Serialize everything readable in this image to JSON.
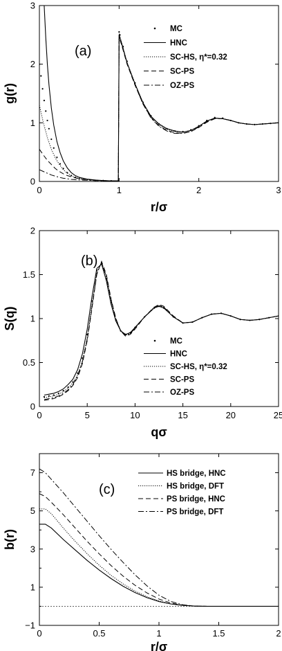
{
  "chart_data": [
    {
      "type": "line",
      "panel_label": "(a)",
      "xlabel": "r/σ",
      "ylabel": "g(r)",
      "xlim": [
        0,
        3
      ],
      "ylim": [
        0,
        3
      ],
      "xticks": [
        "0",
        "1",
        "2",
        "3"
      ],
      "yticks": [
        "0",
        "1",
        "2",
        "3"
      ],
      "legend_position": "top-right",
      "series": [
        {
          "name": "MC",
          "style": "points",
          "x": [
            0,
            0.02,
            0.04,
            0.06,
            0.08,
            0.1,
            0.12,
            0.15,
            0.18,
            0.22,
            0.26,
            0.3,
            0.35,
            0.4,
            0.45,
            0.5,
            0.6,
            0.7,
            0.8,
            0.9,
            0.99,
            1.0,
            1.01,
            1.05,
            1.1,
            1.2,
            1.3,
            1.4,
            1.5,
            1.6,
            1.7,
            1.8,
            1.9,
            2.0,
            2.1,
            2.2,
            2.3,
            2.4,
            2.5,
            2.6,
            2.7,
            2.8,
            2.9,
            3.0
          ],
          "y": [
            2.0,
            1.8,
            1.58,
            1.38,
            1.2,
            1.04,
            0.9,
            0.72,
            0.57,
            0.41,
            0.3,
            0.22,
            0.15,
            0.1,
            0.07,
            0.05,
            0.03,
            0.02,
            0.015,
            0.01,
            0.01,
            2.55,
            2.5,
            2.3,
            2.05,
            1.68,
            1.35,
            1.12,
            0.98,
            0.9,
            0.86,
            0.85,
            0.88,
            0.95,
            1.04,
            1.09,
            1.08,
            1.04,
            1.0,
            0.98,
            0.97,
            0.98,
            0.99,
            1.0
          ]
        },
        {
          "name": "HNC",
          "style": "solid",
          "x": [
            0.06,
            0.08,
            0.1,
            0.12,
            0.15,
            0.18,
            0.22,
            0.26,
            0.3,
            0.35,
            0.4,
            0.45,
            0.5,
            0.6,
            0.7,
            0.8,
            0.9,
            0.99,
            1.0,
            1.01,
            1.05,
            1.1,
            1.2,
            1.3,
            1.4,
            1.5,
            1.6,
            1.7,
            1.8,
            1.9,
            2.0,
            2.1,
            2.2,
            2.3,
            2.4,
            2.5,
            2.6,
            2.7,
            2.8,
            2.9,
            3.0
          ],
          "y": [
            3.0,
            2.45,
            2.0,
            1.65,
            1.25,
            0.96,
            0.68,
            0.49,
            0.35,
            0.23,
            0.15,
            0.1,
            0.07,
            0.04,
            0.025,
            0.015,
            0.01,
            0.01,
            2.5,
            2.45,
            2.26,
            2.02,
            1.66,
            1.34,
            1.11,
            0.98,
            0.9,
            0.86,
            0.84,
            0.87,
            0.94,
            1.03,
            1.08,
            1.07,
            1.04,
            1.0,
            0.98,
            0.97,
            0.98,
            0.99,
            1.0
          ]
        },
        {
          "name": "SC-HS, η*=0.32",
          "style": "dotted",
          "x": [
            0,
            0.05,
            0.1,
            0.15,
            0.2,
            0.25,
            0.3,
            0.35,
            0.4,
            0.45,
            0.5,
            0.6,
            0.7,
            0.8,
            0.9,
            0.99,
            1.0,
            1.01,
            1.05,
            1.1,
            1.2,
            1.3,
            1.4,
            1.5,
            1.6,
            1.7,
            1.8,
            1.9,
            2.0,
            2.1,
            2.2,
            2.3,
            2.4,
            2.5,
            2.6,
            2.7,
            2.8,
            2.9,
            3.0
          ],
          "y": [
            1.3,
            1.0,
            0.75,
            0.55,
            0.4,
            0.29,
            0.2,
            0.14,
            0.1,
            0.07,
            0.05,
            0.03,
            0.02,
            0.015,
            0.01,
            0.01,
            2.52,
            2.47,
            2.28,
            2.03,
            1.67,
            1.34,
            1.11,
            0.97,
            0.89,
            0.85,
            0.84,
            0.87,
            0.94,
            1.03,
            1.08,
            1.07,
            1.04,
            1.0,
            0.98,
            0.97,
            0.98,
            0.99,
            1.0
          ]
        },
        {
          "name": "SC-PS",
          "style": "dashed",
          "x": [
            0,
            0.05,
            0.1,
            0.15,
            0.2,
            0.25,
            0.3,
            0.35,
            0.4,
            0.45,
            0.5,
            0.6,
            0.7,
            0.8,
            0.9,
            0.99,
            1.0,
            1.01,
            1.05,
            1.1,
            1.2,
            1.3,
            1.4,
            1.5,
            1.6,
            1.7,
            1.8,
            1.9,
            2.0,
            2.1,
            2.2,
            2.3,
            2.4,
            2.5,
            2.6,
            2.7,
            2.8,
            2.9,
            3.0
          ],
          "y": [
            0.55,
            0.45,
            0.36,
            0.29,
            0.22,
            0.17,
            0.13,
            0.1,
            0.08,
            0.06,
            0.045,
            0.03,
            0.02,
            0.015,
            0.01,
            0.01,
            2.45,
            2.42,
            2.24,
            2.0,
            1.64,
            1.32,
            1.09,
            0.95,
            0.87,
            0.83,
            0.82,
            0.85,
            0.92,
            1.01,
            1.07,
            1.07,
            1.04,
            1.0,
            0.98,
            0.97,
            0.98,
            0.99,
            1.0
          ]
        },
        {
          "name": "OZ-PS",
          "style": "dashdot",
          "x": [
            0,
            0.05,
            0.1,
            0.15,
            0.2,
            0.25,
            0.3,
            0.35,
            0.4,
            0.45,
            0.5,
            0.6,
            0.7,
            0.8,
            0.9,
            0.99,
            1.0,
            1.01,
            1.05,
            1.1,
            1.2,
            1.3,
            1.4,
            1.5,
            1.6,
            1.7,
            1.8,
            1.9,
            2.0,
            2.1,
            2.2,
            2.3,
            2.4,
            2.5,
            2.6,
            2.7,
            2.8,
            2.9,
            3.0
          ],
          "y": [
            0.2,
            0.17,
            0.14,
            0.11,
            0.09,
            0.07,
            0.055,
            0.045,
            0.035,
            0.03,
            0.025,
            0.02,
            0.015,
            0.01,
            0.01,
            0.01,
            2.5,
            2.46,
            2.27,
            2.02,
            1.65,
            1.32,
            1.08,
            0.94,
            0.86,
            0.82,
            0.82,
            0.85,
            0.93,
            1.02,
            1.08,
            1.07,
            1.04,
            1.0,
            0.98,
            0.97,
            0.98,
            0.99,
            1.0
          ]
        }
      ]
    },
    {
      "type": "line",
      "panel_label": "(b)",
      "xlabel": "qσ",
      "ylabel": "S(q)",
      "xlim": [
        0,
        25
      ],
      "ylim": [
        0,
        2
      ],
      "xticks": [
        "0",
        "5",
        "10",
        "15",
        "20",
        "25"
      ],
      "yticks": [
        "0",
        "0.5",
        "1",
        "1.5",
        "2"
      ],
      "legend_position": "bottom-right",
      "series": [
        {
          "name": "MC",
          "style": "points",
          "x": [
            0.5,
            1,
            1.5,
            2,
            2.5,
            3,
            3.5,
            4,
            4.5,
            5,
            5.5,
            6,
            6.5,
            7,
            7.5,
            8,
            8.5,
            9,
            9.5,
            10,
            11,
            12,
            12.5,
            13,
            14,
            15,
            16,
            17,
            18,
            19,
            20,
            21,
            22,
            23,
            24,
            25
          ],
          "y": [
            0.11,
            0.12,
            0.13,
            0.15,
            0.18,
            0.22,
            0.28,
            0.38,
            0.55,
            0.82,
            1.2,
            1.55,
            1.63,
            1.45,
            1.18,
            0.98,
            0.86,
            0.82,
            0.84,
            0.9,
            1.02,
            1.12,
            1.14,
            1.12,
            1.02,
            0.95,
            0.96,
            1.01,
            1.05,
            1.06,
            1.03,
            0.99,
            0.98,
            0.99,
            1.01,
            1.03
          ]
        },
        {
          "name": "HNC",
          "style": "solid",
          "x": [
            0.5,
            1,
            1.5,
            2,
            2.5,
            3,
            3.5,
            4,
            4.5,
            5,
            5.5,
            6,
            6.5,
            7,
            7.5,
            8,
            8.5,
            9,
            9.5,
            10,
            11,
            12,
            12.5,
            13,
            14,
            15,
            16,
            17,
            18,
            19,
            20,
            21,
            22,
            23,
            24,
            25
          ],
          "y": [
            0.13,
            0.14,
            0.15,
            0.17,
            0.2,
            0.25,
            0.31,
            0.42,
            0.6,
            0.88,
            1.25,
            1.57,
            1.62,
            1.43,
            1.16,
            0.97,
            0.86,
            0.82,
            0.84,
            0.9,
            1.02,
            1.12,
            1.14,
            1.12,
            1.02,
            0.95,
            0.96,
            1.01,
            1.05,
            1.06,
            1.03,
            0.99,
            0.98,
            0.99,
            1.01,
            1.03
          ]
        },
        {
          "name": "SC-HS, η*=0.32",
          "style": "dotted",
          "x": [
            0.5,
            1,
            1.5,
            2,
            2.5,
            3,
            3.5,
            4,
            4.5,
            5,
            5.5,
            6,
            6.5,
            7,
            7.5,
            8,
            8.5,
            9,
            9.5,
            10,
            11,
            12,
            12.5,
            13,
            14,
            15,
            16,
            17,
            18,
            19,
            20,
            21,
            22,
            23,
            24,
            25
          ],
          "y": [
            0.1,
            0.11,
            0.12,
            0.14,
            0.17,
            0.21,
            0.27,
            0.36,
            0.52,
            0.78,
            1.15,
            1.52,
            1.64,
            1.47,
            1.2,
            0.99,
            0.86,
            0.81,
            0.83,
            0.89,
            1.02,
            1.13,
            1.15,
            1.13,
            1.02,
            0.95,
            0.96,
            1.01,
            1.05,
            1.06,
            1.03,
            0.99,
            0.98,
            0.99,
            1.01,
            1.03
          ]
        },
        {
          "name": "SC-PS",
          "style": "dashed",
          "x": [
            0.5,
            1,
            1.5,
            2,
            2.5,
            3,
            3.5,
            4,
            4.5,
            5,
            5.5,
            6,
            6.5,
            7,
            7.5,
            8,
            8.5,
            9,
            9.5,
            10,
            11,
            12,
            12.5,
            13,
            14,
            15,
            16,
            17,
            18,
            19,
            20,
            21,
            22,
            23,
            24,
            25
          ],
          "y": [
            0.07,
            0.08,
            0.09,
            0.11,
            0.14,
            0.18,
            0.24,
            0.33,
            0.49,
            0.75,
            1.12,
            1.5,
            1.65,
            1.5,
            1.22,
            1.0,
            0.86,
            0.8,
            0.82,
            0.88,
            1.02,
            1.13,
            1.16,
            1.14,
            1.03,
            0.95,
            0.96,
            1.01,
            1.05,
            1.06,
            1.03,
            0.99,
            0.98,
            0.99,
            1.01,
            1.03
          ]
        },
        {
          "name": "OZ-PS",
          "style": "dashdot",
          "x": [
            0.5,
            1,
            1.5,
            2,
            2.5,
            3,
            3.5,
            4,
            4.5,
            5,
            5.5,
            6,
            6.5,
            7,
            7.5,
            8,
            8.5,
            9,
            9.5,
            10,
            11,
            12,
            12.5,
            13,
            14,
            15,
            16,
            17,
            18,
            19,
            20,
            21,
            22,
            23,
            24,
            25
          ],
          "y": [
            0.08,
            0.09,
            0.1,
            0.12,
            0.15,
            0.19,
            0.25,
            0.35,
            0.51,
            0.77,
            1.14,
            1.51,
            1.64,
            1.48,
            1.21,
            0.99,
            0.86,
            0.81,
            0.83,
            0.89,
            1.02,
            1.12,
            1.15,
            1.13,
            1.02,
            0.95,
            0.96,
            1.01,
            1.05,
            1.06,
            1.03,
            0.99,
            0.98,
            0.99,
            1.01,
            1.03
          ]
        }
      ]
    },
    {
      "type": "line",
      "panel_label": "(c)",
      "xlabel": "r/σ",
      "ylabel": "b(r)",
      "xlim": [
        0,
        2
      ],
      "ylim": [
        -1,
        8
      ],
      "xticks": [
        "0",
        "0.5",
        "1",
        "1.5",
        "2"
      ],
      "yticks": [
        "−1",
        "1",
        "3",
        "5",
        "7"
      ],
      "legend_position": "top-right",
      "series": [
        {
          "name": "HS bridge, HNC",
          "style": "solid",
          "x": [
            0,
            0.05,
            0.1,
            0.2,
            0.3,
            0.4,
            0.5,
            0.6,
            0.7,
            0.8,
            0.9,
            1.0,
            1.1,
            1.2,
            1.3,
            1.4,
            1.5,
            1.6,
            1.8,
            2.0
          ],
          "y": [
            4.3,
            4.3,
            4.1,
            3.5,
            2.95,
            2.4,
            1.9,
            1.45,
            1.05,
            0.72,
            0.45,
            0.25,
            0.12,
            0.05,
            0.01,
            0.0,
            0.0,
            0.0,
            0.0,
            0.0
          ]
        },
        {
          "name": "HS bridge, DFT",
          "style": "dotted",
          "x": [
            0,
            0.05,
            0.1,
            0.2,
            0.3,
            0.4,
            0.5,
            0.6,
            0.7,
            0.8,
            0.9,
            1.0,
            1.1,
            1.2,
            1.3,
            1.4,
            1.5,
            1.6,
            1.8,
            2.0
          ],
          "y": [
            5.1,
            5.1,
            4.85,
            4.1,
            3.4,
            2.75,
            2.15,
            1.62,
            1.17,
            0.8,
            0.5,
            0.28,
            0.13,
            0.05,
            0.01,
            0.0,
            0.0,
            0.0,
            0.0,
            0.0
          ]
        },
        {
          "name": "PS bridge, HNC",
          "style": "dashed",
          "x": [
            0,
            0.05,
            0.1,
            0.2,
            0.3,
            0.4,
            0.5,
            0.6,
            0.7,
            0.8,
            0.9,
            1.0,
            1.1,
            1.2,
            1.3,
            1.4,
            1.5,
            1.6,
            1.8,
            2.0
          ],
          "y": [
            5.9,
            5.75,
            5.45,
            4.8,
            4.1,
            3.4,
            2.75,
            2.13,
            1.58,
            1.1,
            0.7,
            0.38,
            0.17,
            0.06,
            0.01,
            0.0,
            0.0,
            0.0,
            0.0,
            0.0
          ]
        },
        {
          "name": "PS bridge, DFT",
          "style": "dashdot",
          "x": [
            0,
            0.05,
            0.1,
            0.2,
            0.3,
            0.4,
            0.5,
            0.6,
            0.7,
            0.8,
            0.9,
            1.0,
            1.1,
            1.2,
            1.3,
            1.4,
            1.5,
            1.6,
            1.8,
            2.0
          ],
          "y": [
            7.2,
            7.0,
            6.65,
            5.95,
            5.2,
            4.45,
            3.7,
            2.98,
            2.3,
            1.65,
            1.07,
            0.58,
            0.25,
            0.08,
            0.01,
            0.0,
            0.0,
            0.0,
            0.0,
            0.0
          ]
        }
      ]
    }
  ]
}
